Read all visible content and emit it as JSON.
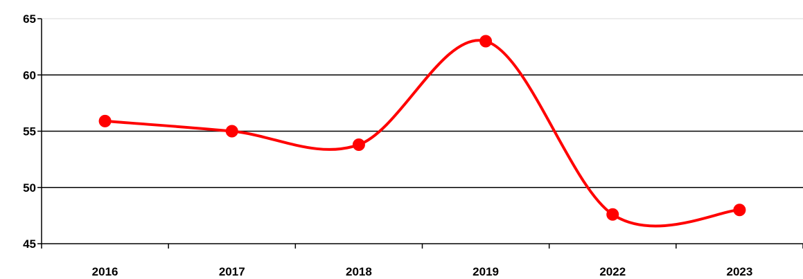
{
  "chart_data": {
    "type": "line",
    "title": "",
    "xlabel": "",
    "ylabel": "",
    "categories": [
      "2016",
      "2017",
      "2018",
      "2019",
      "2022",
      "2023"
    ],
    "series": [
      {
        "values": [
          55.9,
          55.0,
          53.8,
          63.0,
          47.6,
          48.0
        ],
        "color": "#ff0000"
      }
    ],
    "ylim": [
      45,
      65
    ],
    "yticks": [
      "45",
      "50",
      "55",
      "60",
      "65"
    ],
    "grid": true,
    "smooth": true,
    "legend": "none"
  }
}
